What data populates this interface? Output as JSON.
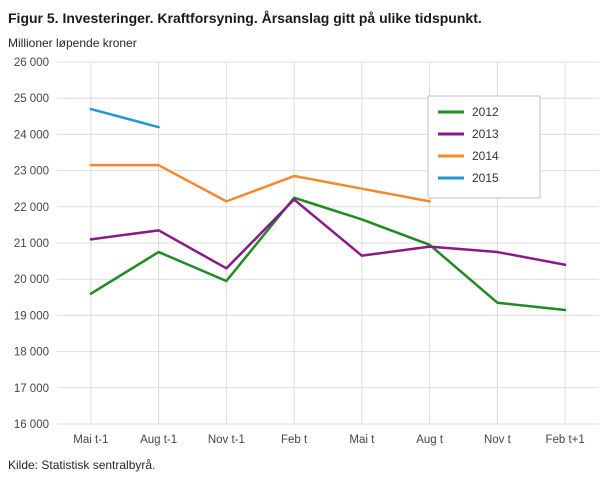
{
  "header": {
    "title": "Figur 5. Investeringer. Kraftforsyning. Årsanslag gitt på ulike tidspunkt.",
    "subtitle": "Millioner løpende kroner"
  },
  "footer": {
    "source": "Kilde: Statistisk sentralbyrå."
  },
  "chart_data": {
    "type": "line",
    "title": "Figur 5. Investeringer. Kraftforsyning. Årsanslag gitt på ulike tidspunkt.",
    "ylabel": "Millioner løpende kroner",
    "xlabel": "",
    "categories": [
      "Mai t-1",
      "Aug t-1",
      "Nov t-1",
      "Feb t",
      "Mai t",
      "Aug t",
      "Nov t",
      "Feb t+1"
    ],
    "series": [
      {
        "name": "2012",
        "color": "#218a21",
        "values": [
          19600,
          20750,
          19950,
          22250,
          21650,
          20950,
          19350,
          19150
        ]
      },
      {
        "name": "2013",
        "color": "#8a1a8a",
        "values": [
          21100,
          21350,
          20300,
          22200,
          20650,
          20900,
          20750,
          20400
        ]
      },
      {
        "name": "2014",
        "color": "#f78829",
        "values": [
          23150,
          23150,
          22150,
          22850,
          22500,
          22150,
          null,
          null
        ]
      },
      {
        "name": "2015",
        "color": "#2396d2",
        "values": [
          24700,
          24200,
          null,
          null,
          null,
          null,
          null,
          null
        ]
      }
    ],
    "ylim": [
      16000,
      26000
    ],
    "ytick_step": 1000,
    "grid": true,
    "legend_position": "top-right",
    "grid_color": "#dcdcdc",
    "legend_border_color": "#bfbfbf"
  }
}
